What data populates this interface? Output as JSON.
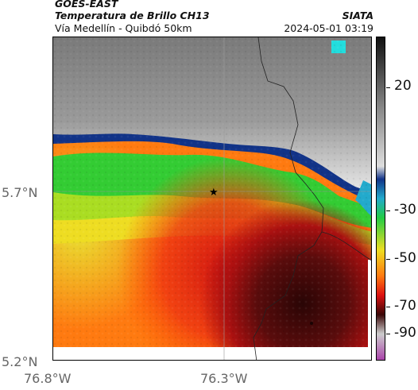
{
  "header": {
    "satellite": "GOES-EAST",
    "product": "Temperatura de Brillo CH13",
    "region": "Vía Medellín - Quibdó 50km",
    "organization": "SIATA",
    "timestamp": "2024-05-01 03:19"
  },
  "map": {
    "lat_labels": [
      "5.7°N",
      "5.2°N"
    ],
    "lon_labels": [
      "76.8°W",
      "76.3°W"
    ],
    "marker": "star",
    "colors": {
      "cold_cloud": "#8a8a8a",
      "warm_ground_high": "#2d0606",
      "green_band": "#22cc33",
      "yellow": "#eedd22",
      "orange": "#ff6600",
      "red": "#dd1111"
    }
  },
  "colorbar": {
    "labels": [
      "20",
      "-30",
      "-50",
      "-70",
      "-90"
    ]
  }
}
